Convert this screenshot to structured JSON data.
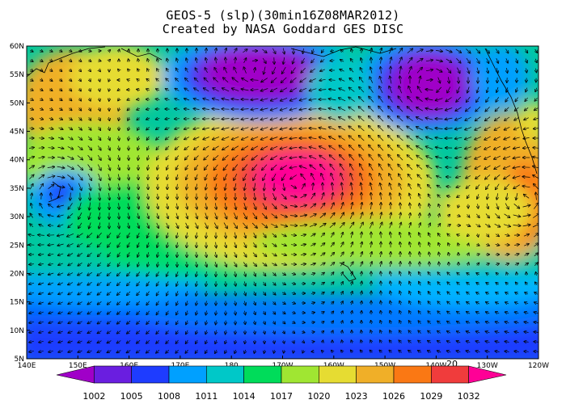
{
  "header": {
    "title_line1": "GEOS-5 (slp)(30min16Z08MAR2012)",
    "title_line2": "Created by NASA Goddard GES DISC"
  },
  "map": {
    "variable": "slp",
    "lat_range": [
      5,
      60
    ],
    "lon_range": [
      "140E",
      "120W"
    ],
    "lat_labels": [
      "60N",
      "55N",
      "50N",
      "45N",
      "40N",
      "35N",
      "30N",
      "25N",
      "20N",
      "15N",
      "10N",
      "5N"
    ],
    "lon_labels": [
      "140E",
      "150E",
      "160E",
      "170E",
      "180",
      "170W",
      "160W",
      "150W",
      "140W",
      "130W",
      "120W"
    ],
    "inline_label": "20",
    "pressure_features": [
      {
        "type": "low",
        "lon": "169E-180",
        "lat": 55,
        "color": "#8a0fc8"
      },
      {
        "type": "low",
        "lon": "145W",
        "lat": 53,
        "color": "#8a0fc8"
      },
      {
        "type": "high",
        "lon": "175W-165W",
        "lat": 37,
        "color": "#ff1a8c"
      },
      {
        "type": "low",
        "lon": "147E",
        "lat": 34,
        "color": "#1060ff"
      }
    ],
    "colors": {
      "land_outline": "#000000",
      "vector": "#000000"
    }
  },
  "colorbar": {
    "labels": [
      "1002",
      "1005",
      "1008",
      "1011",
      "1014",
      "1017",
      "1020",
      "1023",
      "1026",
      "1029",
      "1032"
    ],
    "colors": [
      "#a000c8",
      "#6a1ee0",
      "#1e3cff",
      "#00a0ff",
      "#00c8c8",
      "#00dc5a",
      "#a0e632",
      "#e6dc32",
      "#f0af28",
      "#fa7814",
      "#f03c3c",
      "#ff0096"
    ]
  }
}
